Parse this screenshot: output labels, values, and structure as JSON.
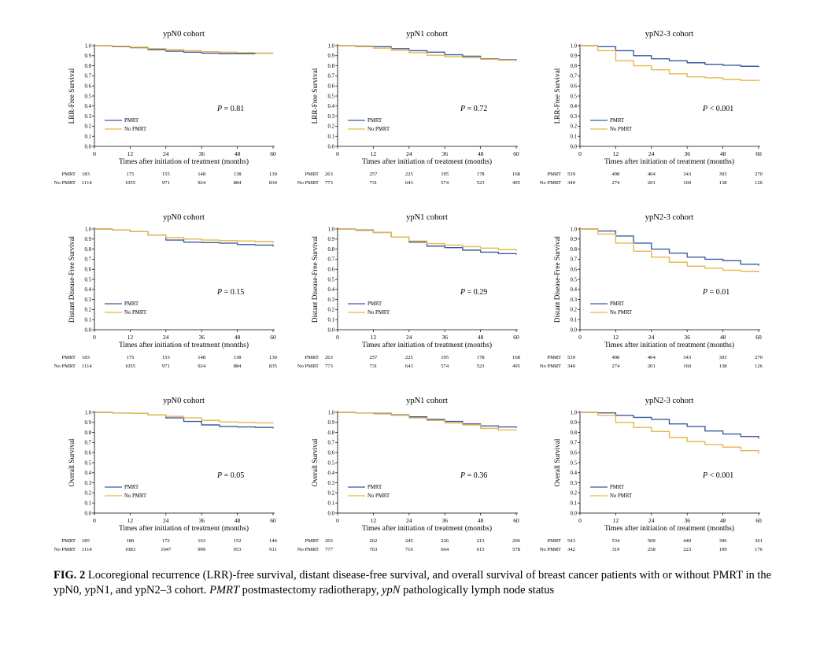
{
  "colors": {
    "PMRT": "#3a5ba0",
    "No PMRT": "#e8b64c"
  },
  "caption": {
    "label": "FIG. 2",
    "body_parts": [
      {
        "t": " Locoregional recurrence (LRR)-free survival, distant disease-free survival, and overall survival of breast cancer patients with or without PMRT in the ypN0, ypN1, and ypN2–3 cohort. ",
        "i": false
      },
      {
        "t": "PMRT",
        "i": true
      },
      {
        "t": " postmastectomy radiotherapy, ",
        "i": false
      },
      {
        "t": "ypN",
        "i": true
      },
      {
        "t": " pathologically lymph node status",
        "i": false
      }
    ]
  },
  "chart_data": [
    {
      "type": "line",
      "title": "ypN0 cohort",
      "ylabel": "LRR-Free Survival",
      "xlabel": "Times after initiation of treatment (months)",
      "x_ticks": [
        0,
        12,
        24,
        36,
        48,
        60
      ],
      "y_ticks": [
        0.0,
        0.1,
        0.2,
        0.3,
        0.4,
        0.5,
        0.6,
        0.7,
        0.8,
        0.9,
        1.0
      ],
      "xlim": [
        0,
        60
      ],
      "ylim": [
        0,
        1.0
      ],
      "p_value": {
        "prefix": "P",
        "op": " = ",
        "value": "0.81"
      },
      "legend": "center-left",
      "series": [
        {
          "name": "PMRT",
          "x": [
            0,
            6,
            12,
            18,
            24,
            30,
            36,
            42,
            48,
            54,
            60
          ],
          "y": [
            1.0,
            0.99,
            0.98,
            0.96,
            0.945,
            0.935,
            0.925,
            0.92,
            0.92,
            0.925,
            0.925
          ]
        },
        {
          "name": "No PMRT",
          "x": [
            0,
            6,
            12,
            18,
            24,
            30,
            36,
            42,
            48,
            54,
            60
          ],
          "y": [
            1.0,
            0.995,
            0.985,
            0.97,
            0.96,
            0.95,
            0.94,
            0.935,
            0.93,
            0.925,
            0.92
          ]
        }
      ],
      "at_risk": {
        "PMRT": [
          "183",
          "175",
          "155",
          "148",
          "138",
          "130"
        ],
        "No PMRT": [
          "1114",
          "1055",
          "971",
          "924",
          "884",
          "834"
        ]
      }
    },
    {
      "type": "line",
      "title": "ypN1 cohort",
      "ylabel": "LRR-Free Survival",
      "xlabel": "Times after initiation of treatment (months)",
      "x_ticks": [
        0,
        12,
        24,
        36,
        48,
        60
      ],
      "y_ticks": [
        0.0,
        0.1,
        0.2,
        0.3,
        0.4,
        0.5,
        0.6,
        0.7,
        0.8,
        0.9,
        1.0
      ],
      "xlim": [
        0,
        60
      ],
      "ylim": [
        0,
        1.0
      ],
      "p_value": {
        "prefix": "P",
        "op": " = ",
        "value": "0.72"
      },
      "legend": "center-left",
      "series": [
        {
          "name": "PMRT",
          "x": [
            0,
            6,
            12,
            18,
            24,
            30,
            36,
            42,
            48,
            54,
            60
          ],
          "y": [
            1.0,
            0.995,
            0.99,
            0.97,
            0.95,
            0.935,
            0.91,
            0.895,
            0.87,
            0.86,
            0.85
          ]
        },
        {
          "name": "No PMRT",
          "x": [
            0,
            6,
            12,
            18,
            24,
            30,
            36,
            42,
            48,
            54,
            60
          ],
          "y": [
            1.0,
            0.99,
            0.975,
            0.955,
            0.93,
            0.905,
            0.89,
            0.88,
            0.865,
            0.855,
            0.85
          ]
        }
      ],
      "at_risk": {
        "PMRT": [
          "263",
          "257",
          "225",
          "195",
          "178",
          "168"
        ],
        "No PMRT": [
          "773",
          "731",
          "643",
          "574",
          "523",
          "495"
        ]
      }
    },
    {
      "type": "line",
      "title": "ypN2-3 cohort",
      "ylabel": "LRR-Free Survival",
      "xlabel": "Times after initiation of treatment (months)",
      "x_ticks": [
        0,
        12,
        24,
        36,
        48,
        60
      ],
      "y_ticks": [
        0.0,
        0.1,
        0.2,
        0.3,
        0.4,
        0.5,
        0.6,
        0.7,
        0.8,
        0.9,
        1.0
      ],
      "xlim": [
        0,
        60
      ],
      "ylim": [
        0,
        1.0
      ],
      "p_value": {
        "prefix": "P",
        "op": " < ",
        "value": "0.001"
      },
      "legend": "center-left",
      "series": [
        {
          "name": "PMRT",
          "x": [
            0,
            6,
            12,
            18,
            24,
            30,
            36,
            42,
            48,
            54,
            60
          ],
          "y": [
            1.0,
            0.99,
            0.95,
            0.9,
            0.87,
            0.85,
            0.83,
            0.815,
            0.805,
            0.795,
            0.785
          ]
        },
        {
          "name": "No PMRT",
          "x": [
            0,
            6,
            12,
            18,
            24,
            30,
            36,
            42,
            48,
            54,
            60
          ],
          "y": [
            1.0,
            0.95,
            0.85,
            0.8,
            0.76,
            0.72,
            0.69,
            0.68,
            0.665,
            0.655,
            0.645
          ]
        }
      ],
      "at_risk": {
        "PMRT": [
          "539",
          "498",
          "404",
          "343",
          "303",
          "270"
        ],
        "No PMRT": [
          "340",
          "274",
          "201",
          "160",
          "138",
          "126"
        ]
      }
    },
    {
      "type": "line",
      "title": "ypN0 cohort",
      "ylabel": "Distant Disease-Free Survival",
      "xlabel": "Times after initiation of treatment (months)",
      "x_ticks": [
        0,
        12,
        24,
        36,
        48,
        60
      ],
      "y_ticks": [
        0.0,
        0.1,
        0.2,
        0.3,
        0.4,
        0.5,
        0.6,
        0.7,
        0.8,
        0.9,
        1.0
      ],
      "xlim": [
        0,
        60
      ],
      "ylim": [
        0,
        1.0
      ],
      "p_value": {
        "prefix": "P",
        "op": " = ",
        "value": "0.15"
      },
      "legend": "center-left",
      "series": [
        {
          "name": "PMRT",
          "x": [
            0,
            6,
            12,
            18,
            24,
            30,
            36,
            42,
            48,
            54,
            60
          ],
          "y": [
            1.0,
            0.99,
            0.975,
            0.94,
            0.89,
            0.87,
            0.865,
            0.86,
            0.845,
            0.84,
            0.825
          ]
        },
        {
          "name": "No PMRT",
          "x": [
            0,
            6,
            12,
            18,
            24,
            30,
            36,
            42,
            48,
            54,
            60
          ],
          "y": [
            1.0,
            0.99,
            0.975,
            0.94,
            0.915,
            0.9,
            0.89,
            0.885,
            0.88,
            0.875,
            0.86
          ]
        }
      ],
      "at_risk": {
        "PMRT": [
          "183",
          "175",
          "155",
          "148",
          "138",
          "130"
        ],
        "No PMRT": [
          "1114",
          "1055",
          "971",
          "924",
          "884",
          "835"
        ]
      }
    },
    {
      "type": "line",
      "title": "ypN1 cohort",
      "ylabel": "Distant Disease-Free Survival",
      "xlabel": "Times after initiation of treatment (months)",
      "x_ticks": [
        0,
        12,
        24,
        36,
        48,
        60
      ],
      "y_ticks": [
        0.0,
        0.1,
        0.2,
        0.3,
        0.4,
        0.5,
        0.6,
        0.7,
        0.8,
        0.9,
        1.0
      ],
      "xlim": [
        0,
        60
      ],
      "ylim": [
        0,
        1.0
      ],
      "p_value": {
        "prefix": "P",
        "op": " = ",
        "value": "0.29"
      },
      "legend": "center-left",
      "series": [
        {
          "name": "PMRT",
          "x": [
            0,
            6,
            12,
            18,
            24,
            30,
            36,
            42,
            48,
            54,
            60
          ],
          "y": [
            1.0,
            0.99,
            0.965,
            0.92,
            0.87,
            0.83,
            0.815,
            0.79,
            0.77,
            0.755,
            0.745
          ]
        },
        {
          "name": "No PMRT",
          "x": [
            0,
            6,
            12,
            18,
            24,
            30,
            36,
            42,
            48,
            54,
            60
          ],
          "y": [
            1.0,
            0.985,
            0.965,
            0.92,
            0.88,
            0.855,
            0.84,
            0.825,
            0.81,
            0.795,
            0.78
          ]
        }
      ],
      "at_risk": {
        "PMRT": [
          "263",
          "257",
          "225",
          "195",
          "178",
          "168"
        ],
        "No PMRT": [
          "773",
          "731",
          "643",
          "574",
          "523",
          "495"
        ]
      }
    },
    {
      "type": "line",
      "title": "ypN2-3 cohort",
      "ylabel": "Distant Disease-Free Survival",
      "xlabel": "Times after initiation of treatment (months)",
      "x_ticks": [
        0,
        12,
        24,
        36,
        48,
        60
      ],
      "y_ticks": [
        0.0,
        0.1,
        0.2,
        0.3,
        0.4,
        0.5,
        0.6,
        0.7,
        0.8,
        0.9,
        1.0
      ],
      "xlim": [
        0,
        60
      ],
      "ylim": [
        0,
        1.0
      ],
      "p_value": {
        "prefix": "P",
        "op": " = ",
        "value": "0.01"
      },
      "legend": "center-left",
      "series": [
        {
          "name": "PMRT",
          "x": [
            0,
            6,
            12,
            18,
            24,
            30,
            36,
            42,
            48,
            54,
            60
          ],
          "y": [
            1.0,
            0.98,
            0.93,
            0.86,
            0.8,
            0.76,
            0.72,
            0.7,
            0.685,
            0.65,
            0.635
          ]
        },
        {
          "name": "No PMRT",
          "x": [
            0,
            6,
            12,
            18,
            24,
            30,
            36,
            42,
            48,
            54,
            60
          ],
          "y": [
            1.0,
            0.95,
            0.86,
            0.78,
            0.72,
            0.67,
            0.63,
            0.61,
            0.59,
            0.58,
            0.57
          ]
        }
      ],
      "at_risk": {
        "PMRT": [
          "539",
          "498",
          "404",
          "343",
          "303",
          "270"
        ],
        "No PMRT": [
          "340",
          "274",
          "201",
          "160",
          "138",
          "126"
        ]
      }
    },
    {
      "type": "line",
      "title": "ypN0 cohort",
      "ylabel": "Overall Survival",
      "xlabel": "Times after initiation of treatment (months)",
      "x_ticks": [
        0,
        12,
        24,
        36,
        48,
        60
      ],
      "y_ticks": [
        0.0,
        0.1,
        0.2,
        0.3,
        0.4,
        0.5,
        0.6,
        0.7,
        0.8,
        0.9,
        1.0
      ],
      "xlim": [
        0,
        60
      ],
      "ylim": [
        0,
        1.0
      ],
      "p_value": {
        "prefix": "P",
        "op": " = ",
        "value": "0.05"
      },
      "legend": "center-left",
      "series": [
        {
          "name": "PMRT",
          "x": [
            0,
            6,
            12,
            18,
            24,
            30,
            36,
            42,
            48,
            54,
            60
          ],
          "y": [
            1.0,
            0.995,
            0.99,
            0.975,
            0.945,
            0.91,
            0.875,
            0.86,
            0.855,
            0.85,
            0.84
          ]
        },
        {
          "name": "No PMRT",
          "x": [
            0,
            6,
            12,
            18,
            24,
            30,
            36,
            42,
            48,
            54,
            60
          ],
          "y": [
            1.0,
            0.995,
            0.99,
            0.975,
            0.96,
            0.945,
            0.92,
            0.905,
            0.9,
            0.895,
            0.89
          ]
        }
      ],
      "at_risk": {
        "PMRT": [
          "185",
          "180",
          "172",
          "163",
          "152",
          "144"
        ],
        "No PMRT": [
          "1114",
          "1083",
          "1047",
          "999",
          "953",
          "911"
        ]
      }
    },
    {
      "type": "line",
      "title": "ypN1 cohort",
      "ylabel": "Overall Survival",
      "xlabel": "Times after initiation of treatment (months)",
      "x_ticks": [
        0,
        12,
        24,
        36,
        48,
        60
      ],
      "y_ticks": [
        0.0,
        0.1,
        0.2,
        0.3,
        0.4,
        0.5,
        0.6,
        0.7,
        0.8,
        0.9,
        1.0
      ],
      "xlim": [
        0,
        60
      ],
      "ylim": [
        0,
        1.0
      ],
      "p_value": {
        "prefix": "P",
        "op": " = ",
        "value": "0.36"
      },
      "legend": "center-left",
      "series": [
        {
          "name": "PMRT",
          "x": [
            0,
            6,
            12,
            18,
            24,
            30,
            36,
            42,
            48,
            54,
            60
          ],
          "y": [
            1.0,
            0.995,
            0.99,
            0.975,
            0.955,
            0.93,
            0.91,
            0.885,
            0.865,
            0.855,
            0.845
          ]
        },
        {
          "name": "No PMRT",
          "x": [
            0,
            6,
            12,
            18,
            24,
            30,
            36,
            42,
            48,
            54,
            60
          ],
          "y": [
            1.0,
            0.995,
            0.985,
            0.97,
            0.945,
            0.92,
            0.895,
            0.875,
            0.84,
            0.825,
            0.82
          ]
        }
      ],
      "at_risk": {
        "PMRT": [
          "265",
          "262",
          "245",
          "226",
          "213",
          "206"
        ],
        "No PMRT": [
          "777",
          "763",
          "716",
          "664",
          "615",
          "578"
        ]
      }
    },
    {
      "type": "line",
      "title": "ypN2-3 cohort",
      "ylabel": "Overall Survival",
      "xlabel": "Times after initiation of treatment (months)",
      "x_ticks": [
        0,
        12,
        24,
        36,
        48,
        60
      ],
      "y_ticks": [
        0.0,
        0.1,
        0.2,
        0.3,
        0.4,
        0.5,
        0.6,
        0.7,
        0.8,
        0.9,
        1.0
      ],
      "xlim": [
        0,
        60
      ],
      "ylim": [
        0,
        1.0
      ],
      "p_value": {
        "prefix": "P",
        "op": " < ",
        "value": "0.001"
      },
      "legend": "center-left",
      "series": [
        {
          "name": "PMRT",
          "x": [
            0,
            6,
            12,
            18,
            24,
            30,
            36,
            42,
            48,
            54,
            60
          ],
          "y": [
            1.0,
            0.995,
            0.97,
            0.95,
            0.93,
            0.885,
            0.86,
            0.815,
            0.785,
            0.76,
            0.74
          ]
        },
        {
          "name": "No PMRT",
          "x": [
            0,
            6,
            12,
            18,
            24,
            30,
            36,
            42,
            48,
            54,
            60
          ],
          "y": [
            1.0,
            0.97,
            0.9,
            0.85,
            0.81,
            0.75,
            0.71,
            0.68,
            0.655,
            0.62,
            0.59
          ]
        }
      ],
      "at_risk": {
        "PMRT": [
          "543",
          "534",
          "500",
          "440",
          "396",
          "361"
        ],
        "No PMRT": [
          "342",
          "319",
          "258",
          "223",
          "199",
          "176"
        ]
      }
    }
  ]
}
